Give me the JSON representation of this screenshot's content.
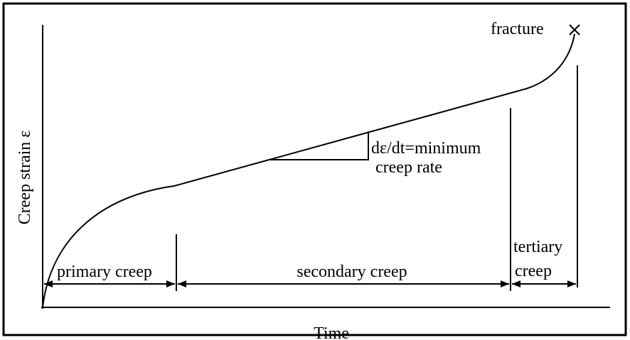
{
  "axes": {
    "y_label": "Creep strain ε",
    "x_label": "Time"
  },
  "annotations": {
    "fracture": "fracture",
    "slope_line1": "dε/dt=minimum",
    "slope_line2": "creep rate"
  },
  "stages": {
    "primary": "primary creep",
    "secondary": "secondary creep",
    "tertiary_line1": "tertiary",
    "tertiary_line2": "creep"
  }
}
